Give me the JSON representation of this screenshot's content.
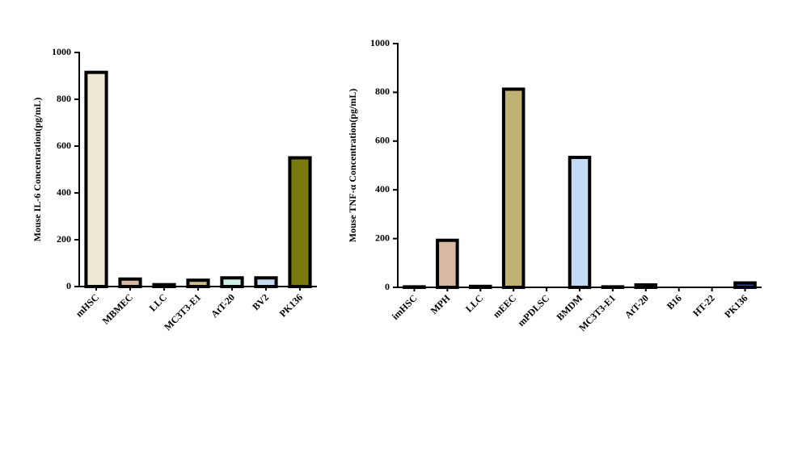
{
  "chart_data": [
    {
      "type": "bar",
      "y_label": "Mouse IL-6 Concentration(pg/mL)",
      "categories": [
        "mHSC",
        "MBMEC",
        "LLC",
        "MC3T3-E1",
        "AtT-20",
        "BV2",
        "PK136"
      ],
      "values": [
        915,
        32,
        8,
        27,
        37,
        37,
        550
      ],
      "colors": [
        "#efe8d2",
        "#d9b8a3",
        "#5a5a5a",
        "#cbbd8e",
        "#ccefe6",
        "#c7d9f0",
        "#7a7a0c"
      ],
      "ylim": [
        0,
        1000
      ],
      "yticks": [
        0,
        200,
        400,
        600,
        800,
        1000
      ]
    },
    {
      "type": "bar",
      "y_label": "Mouse TNF-α Concentration(pg/mL)",
      "categories": [
        "imHSC",
        "MPH",
        "LLC",
        "mEEC",
        "mPDLSC",
        "BMDM",
        "MC3T3-E1",
        "AtT-20",
        "B16",
        "HT-22",
        "PK136"
      ],
      "values": [
        2,
        193,
        4,
        813,
        0,
        533,
        2,
        10,
        0,
        0,
        18
      ],
      "colors": [
        "#e8e0c8",
        "#d9b8a3",
        "#5a5a5a",
        "#bfb274",
        "#c9c9c9",
        "#c5daf5",
        "#bbbbbb",
        "#eeeeee",
        "#dddddd",
        "#dddddd",
        "#3b3bd6"
      ],
      "ylim": [
        0,
        1000
      ],
      "yticks": [
        0,
        200,
        400,
        600,
        800,
        1000
      ]
    }
  ]
}
